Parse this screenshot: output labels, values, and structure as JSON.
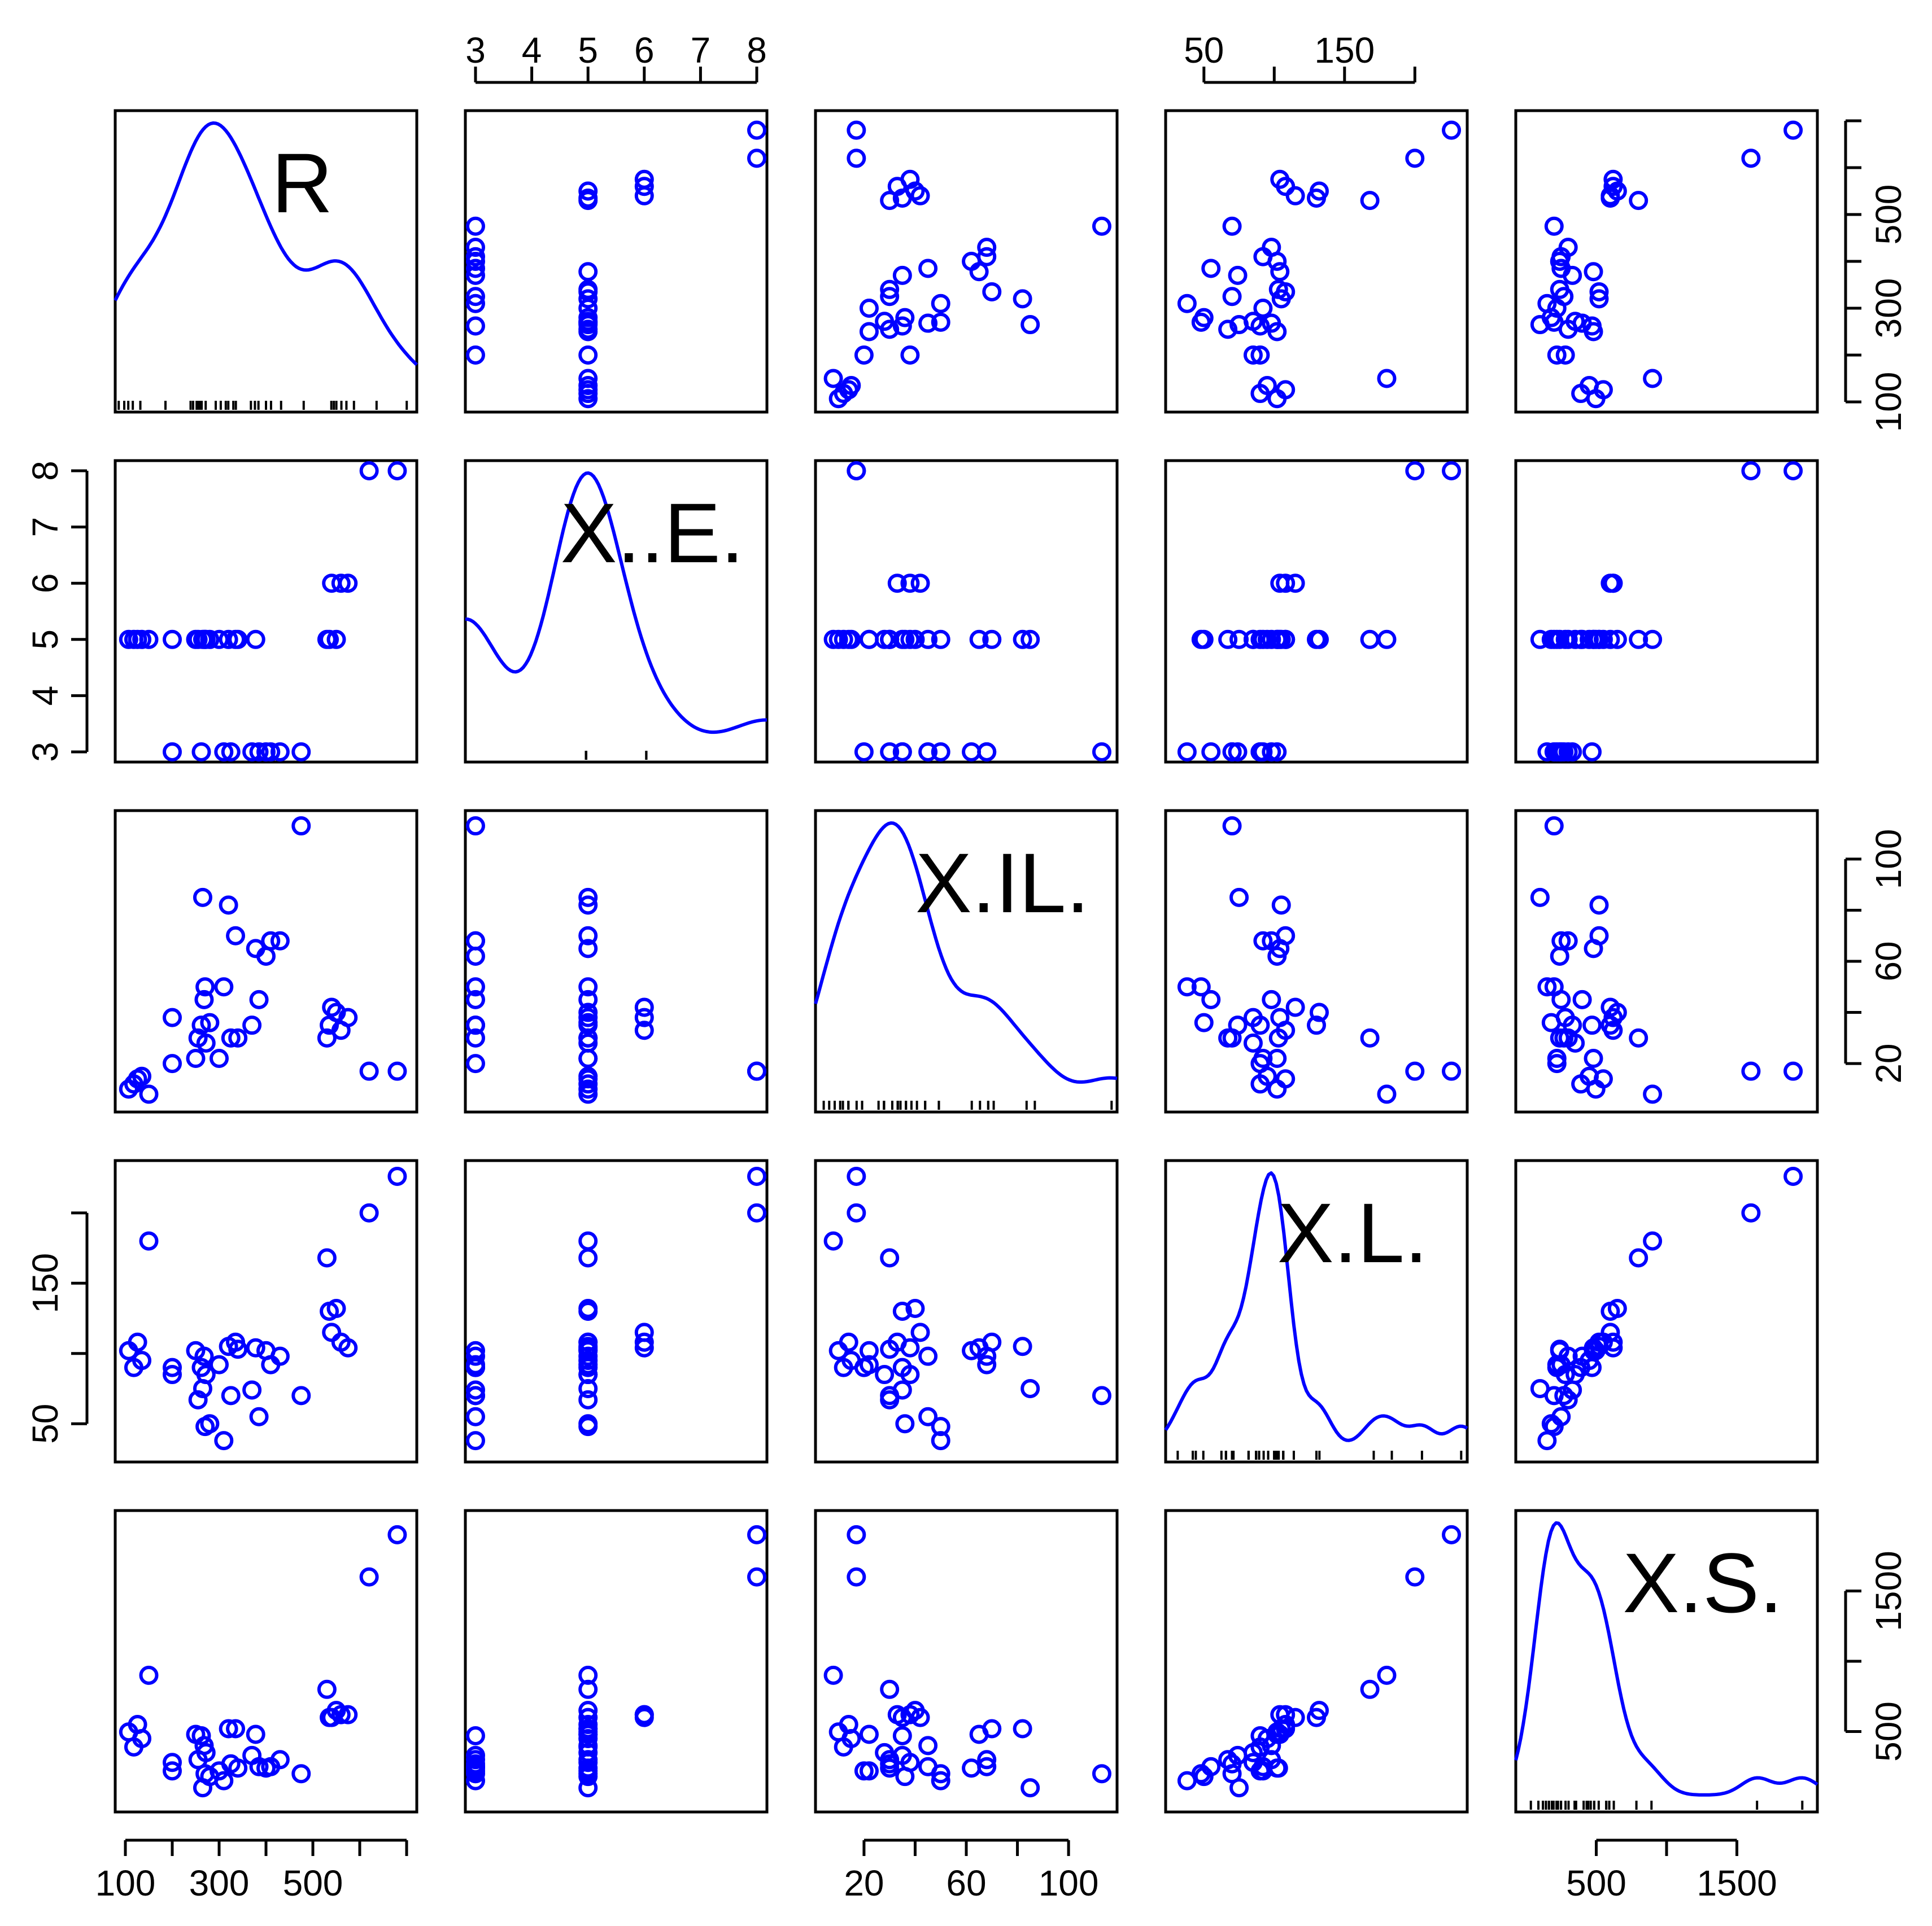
{
  "chart_data": {
    "type": "scatter",
    "title": "",
    "variables": [
      {
        "name": "R",
        "label": "R",
        "range": [
          100,
          700
        ],
        "ticks": [
          100,
          200,
          300,
          400,
          500,
          600,
          700
        ],
        "tick_labels": [
          "100",
          "",
          "300",
          "",
          "500",
          "",
          ""
        ]
      },
      {
        "name": "X..E.",
        "label": "X..E.",
        "range": [
          3,
          8
        ],
        "ticks": [
          3,
          4,
          5,
          6,
          7,
          8
        ],
        "tick_labels": [
          "3",
          "4",
          "5",
          "6",
          "7",
          "8"
        ]
      },
      {
        "name": "X.IL.",
        "label": "X.IL.",
        "range": [
          5,
          115
        ],
        "ticks": [
          20,
          40,
          60,
          80,
          100
        ],
        "tick_labels": [
          "20",
          "",
          "60",
          "",
          "100"
        ]
      },
      {
        "name": "X.L.",
        "label": "X.L.",
        "range": [
          30,
          230
        ],
        "ticks": [
          50,
          100,
          150,
          200
        ],
        "tick_labels": [
          "50",
          "",
          "150",
          ""
        ]
      },
      {
        "name": "X.S.",
        "label": "X.S.",
        "range": [
          0,
          2000
        ],
        "ticks": [
          500,
          1000,
          1500
        ],
        "tick_labels": [
          "500",
          "",
          "1500"
        ]
      }
    ],
    "observations": [
      [
        107,
        5,
        10,
        102,
        497
      ],
      [
        118,
        5,
        12,
        90,
        390
      ],
      [
        126,
        5,
        14,
        108,
        550
      ],
      [
        135,
        5,
        15,
        95,
        450
      ],
      [
        150,
        5,
        8,
        180,
        900
      ],
      [
        200,
        3,
        20,
        90,
        220
      ],
      [
        200,
        5,
        38,
        85,
        280
      ],
      [
        250,
        5,
        22,
        102,
        480
      ],
      [
        255,
        5,
        30,
        67,
        300
      ],
      [
        262,
        3,
        35,
        90,
        470
      ],
      [
        265,
        5,
        85,
        75,
        100
      ],
      [
        268,
        5,
        45,
        98,
        400
      ],
      [
        270,
        5,
        50,
        48,
        200
      ],
      [
        272,
        5,
        28,
        85,
        350
      ],
      [
        280,
        5,
        36,
        50,
        180
      ],
      [
        300,
        5,
        22,
        92,
        220
      ],
      [
        310,
        3,
        50,
        38,
        150
      ],
      [
        320,
        5,
        82,
        105,
        520
      ],
      [
        325,
        3,
        30,
        70,
        270
      ],
      [
        335,
        5,
        70,
        108,
        520
      ],
      [
        340,
        5,
        30,
        103,
        240
      ],
      [
        370,
        3,
        35,
        74,
        330
      ],
      [
        378,
        5,
        65,
        104,
        480
      ],
      [
        385,
        3,
        45,
        55,
        250
      ],
      [
        400,
        3,
        62,
        102,
        240
      ],
      [
        410,
        3,
        68,
        92,
        250
      ],
      [
        430,
        3,
        68,
        98,
        300
      ],
      [
        475,
        3,
        113,
        70,
        200
      ],
      [
        530,
        5,
        30,
        168,
        800
      ],
      [
        535,
        5,
        35,
        130,
        600
      ],
      [
        540,
        6,
        42,
        115,
        600
      ],
      [
        550,
        5,
        40,
        132,
        650
      ],
      [
        560,
        6,
        33,
        108,
        620
      ],
      [
        575,
        6,
        38,
        104,
        620
      ],
      [
        620,
        8,
        17,
        200,
        1600
      ],
      [
        680,
        8,
        17,
        226,
        1900
      ]
    ]
  }
}
